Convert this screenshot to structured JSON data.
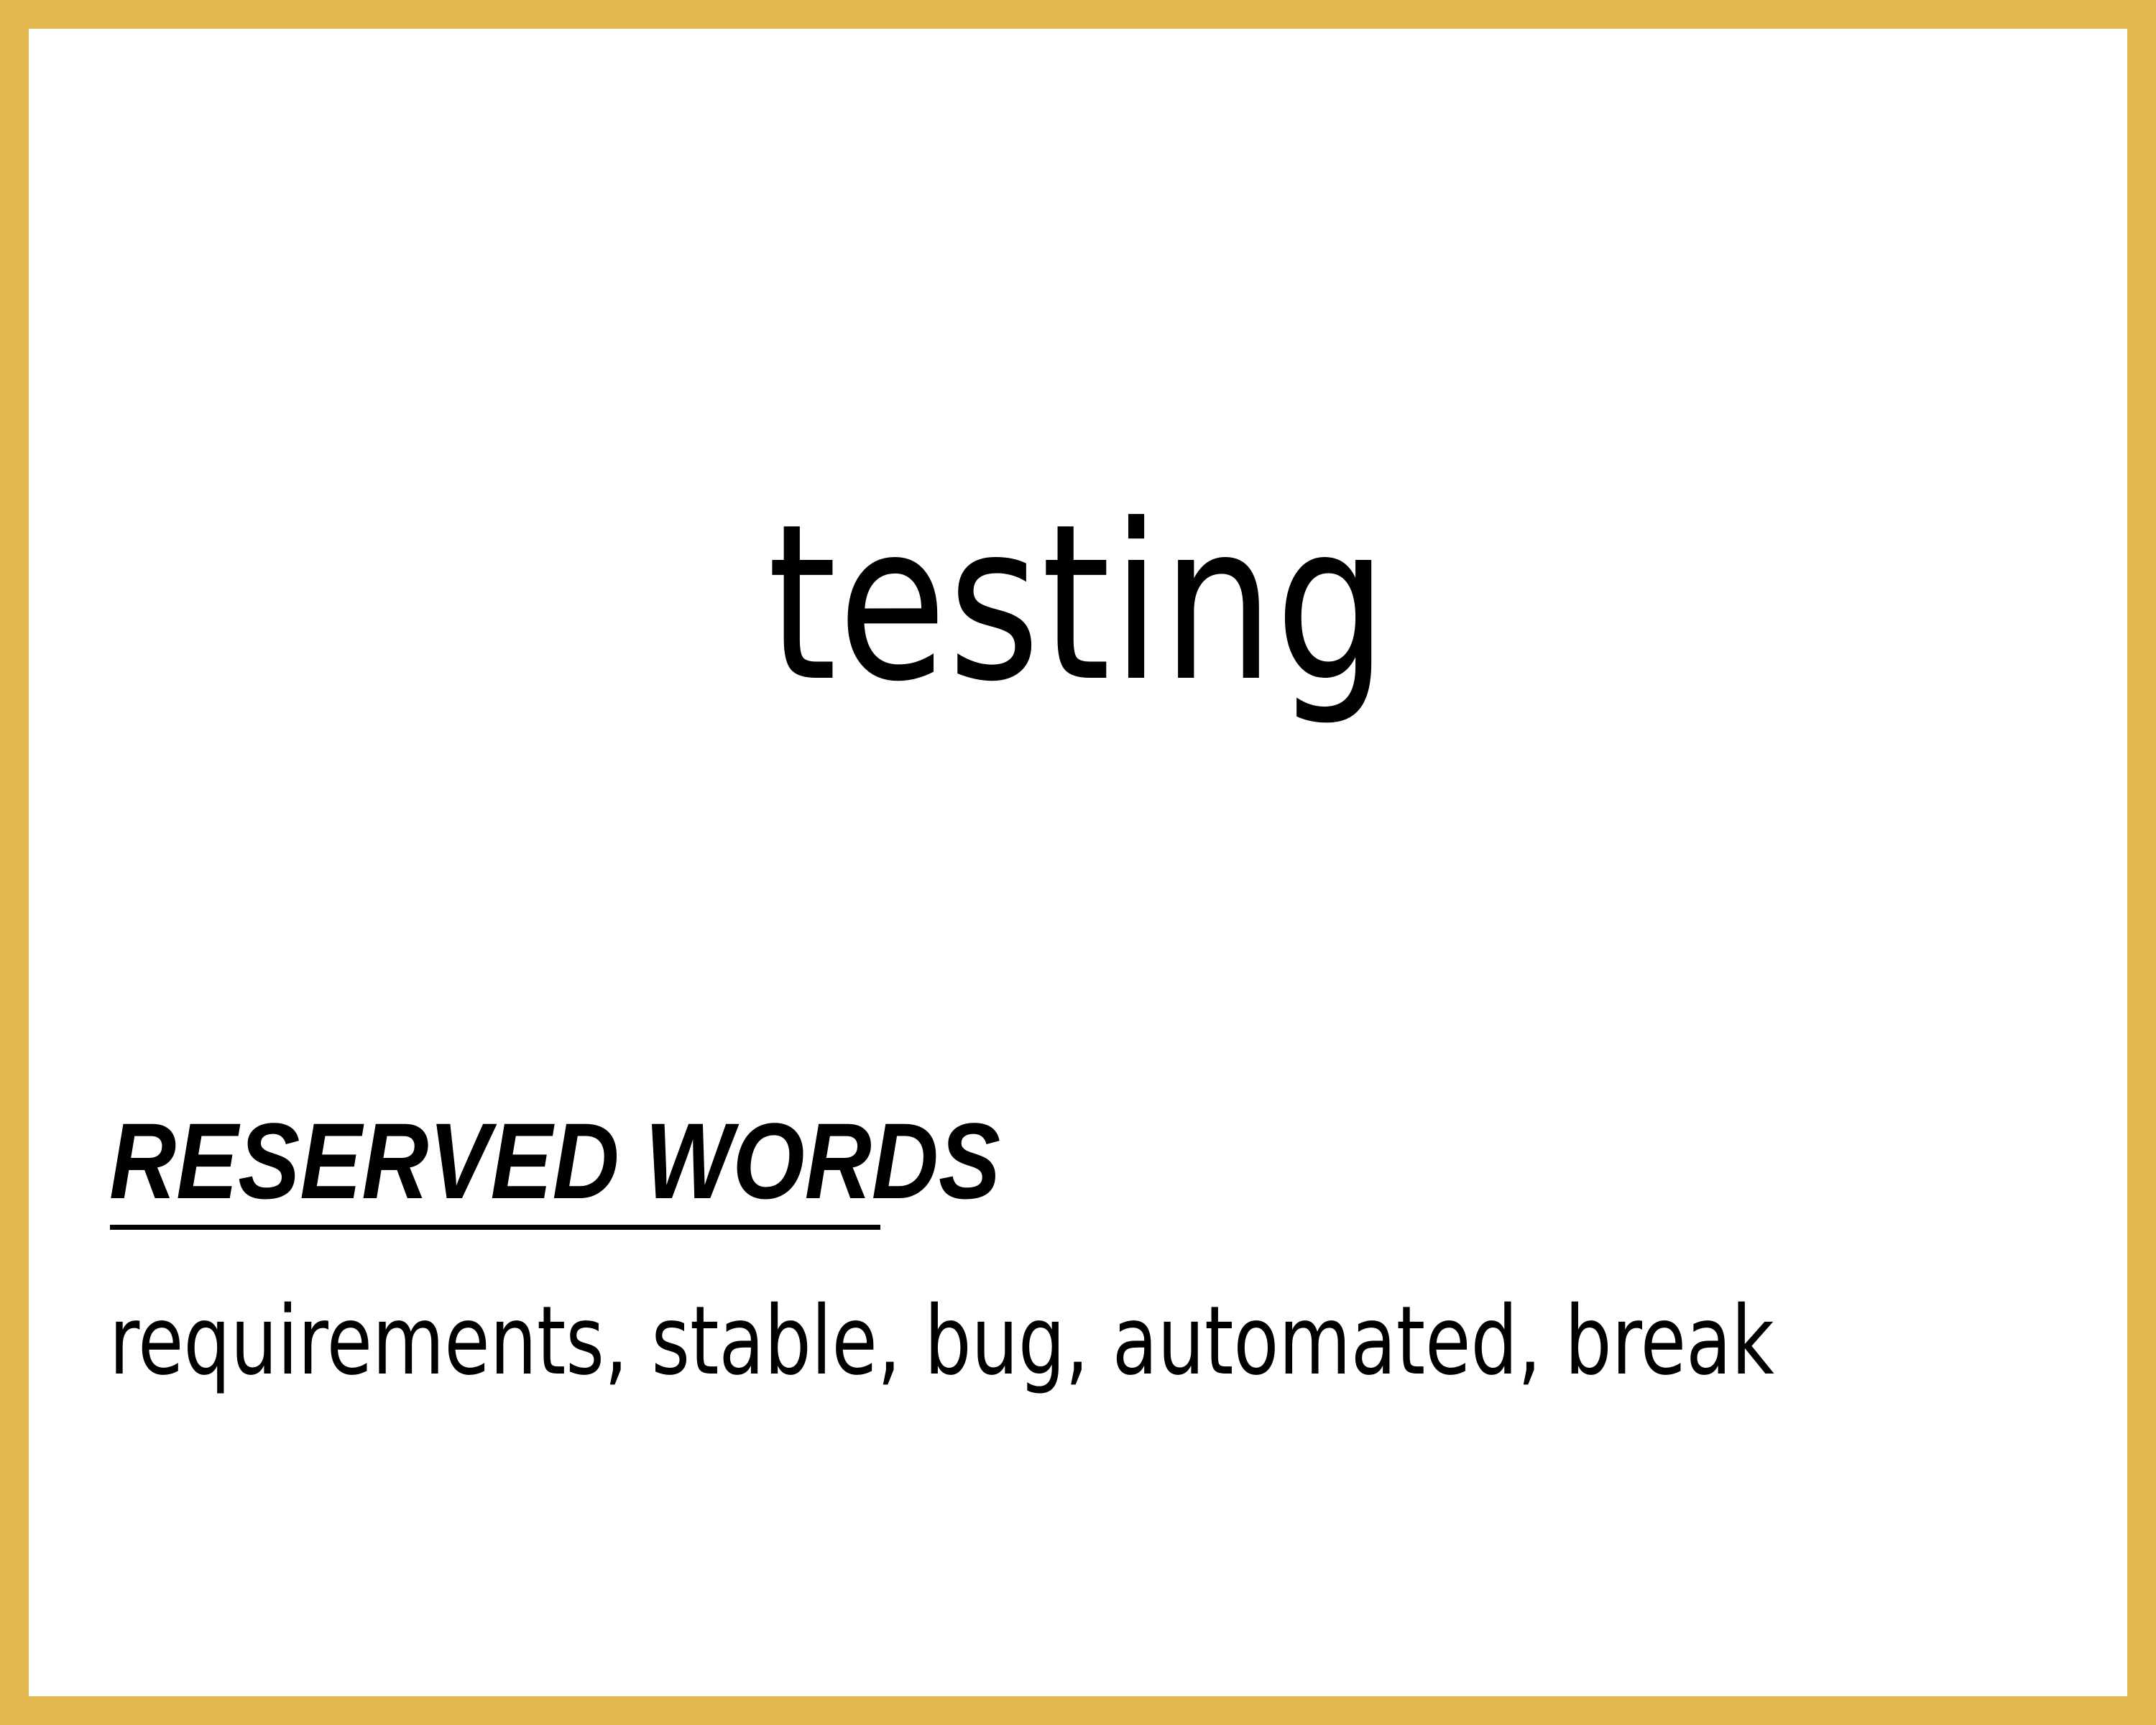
{
  "colors": {
    "frame": "#E5B851",
    "card_background": "#FFFFFF",
    "text": "#000000"
  },
  "card": {
    "word": "testing",
    "reserved_heading": "RESERVED WORDS",
    "reserved_list": "requirements, stable, bug, automated, break"
  }
}
